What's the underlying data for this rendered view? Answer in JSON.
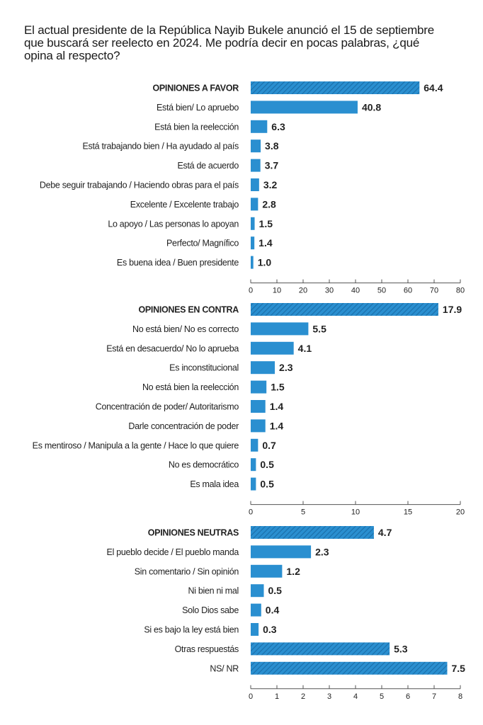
{
  "question": "El actual presidente de la República Nayib Bukele anunció el 15 de septiembre que buscará ser reelecto en 2024. Me podría decir en pocas palabras, ¿qué opina al respecto?",
  "colors": {
    "bar": "#2a8fd0",
    "hatch_stripe": "#1b6ea8",
    "axis": "#555555"
  },
  "chart_data": [
    {
      "type": "bar",
      "orientation": "horizontal",
      "xlim": [
        0,
        80
      ],
      "xticks": [
        0,
        10,
        20,
        30,
        40,
        50,
        60,
        70,
        80
      ],
      "categories": [
        "OPINIONES A FAVOR",
        "Está bien/ Lo apruebo",
        "Está bien la reelección",
        "Está trabajando bien / Ha ayudado al país",
        "Está de acuerdo",
        "Debe seguir trabajando / Haciendo obras para el país",
        "Excelente / Excelente trabajo",
        "Lo apoyo / Las personas lo apoyan",
        "Perfecto/ Magnífico",
        "Es buena idea / Buen presidente"
      ],
      "values": [
        64.4,
        40.8,
        6.3,
        3.8,
        3.7,
        3.2,
        2.8,
        1.5,
        1.4,
        1.0
      ],
      "value_labels": [
        "64.4",
        "40.8",
        "6.3",
        "3.8",
        "3.7",
        "3.2",
        "2.8",
        "1.5",
        "1.4",
        "1.0"
      ],
      "hatched": [
        true,
        false,
        false,
        false,
        false,
        false,
        false,
        false,
        false,
        false
      ],
      "bold_label": [
        true,
        false,
        false,
        false,
        false,
        false,
        false,
        false,
        false,
        false
      ]
    },
    {
      "type": "bar",
      "orientation": "horizontal",
      "xlim": [
        0,
        20
      ],
      "xticks": [
        0,
        5,
        10,
        15,
        20
      ],
      "categories": [
        "OPINIONES EN CONTRA",
        "No está bien/ No es correcto",
        "Está en desacuerdo/ No lo aprueba",
        "Es inconstitucional",
        "No está bien la reelección",
        "Concentración de poder/ Autoritarismo",
        "Darle concentración de poder",
        "Es mentiroso / Manipula a la gente / Hace lo que quiere",
        "No es democrático",
        "Es mala idea"
      ],
      "values": [
        17.9,
        5.5,
        4.1,
        2.3,
        1.5,
        1.4,
        1.4,
        0.7,
        0.5,
        0.5
      ],
      "value_labels": [
        "17.9",
        "5.5",
        "4.1",
        "2.3",
        "1.5",
        "1.4",
        "1.4",
        "0.7",
        "0.5",
        "0.5"
      ],
      "hatched": [
        true,
        false,
        false,
        false,
        false,
        false,
        false,
        false,
        false,
        false
      ],
      "bold_label": [
        true,
        false,
        false,
        false,
        false,
        false,
        false,
        false,
        false,
        false
      ]
    },
    {
      "type": "bar",
      "orientation": "horizontal",
      "xlim": [
        0,
        8
      ],
      "xticks": [
        0,
        1,
        2,
        3,
        4,
        5,
        6,
        7,
        8
      ],
      "categories": [
        "OPINIONES NEUTRAS",
        "El pueblo decide / El pueblo manda",
        "Sin comentario / Sin opinión",
        "Ni bien ni mal",
        "Solo Dios sabe",
        "Si es bajo la ley está bien",
        "Otras respuestás",
        "NS/ NR"
      ],
      "values": [
        4.7,
        2.3,
        1.2,
        0.5,
        0.4,
        0.3,
        5.3,
        7.5
      ],
      "value_labels": [
        "4.7",
        "2.3",
        "1.2",
        "0.5",
        "0.4",
        "0.3",
        "5.3",
        "7.5"
      ],
      "hatched": [
        true,
        false,
        false,
        false,
        false,
        false,
        true,
        true
      ],
      "bold_label": [
        true,
        false,
        false,
        false,
        false,
        false,
        false,
        false
      ]
    }
  ]
}
